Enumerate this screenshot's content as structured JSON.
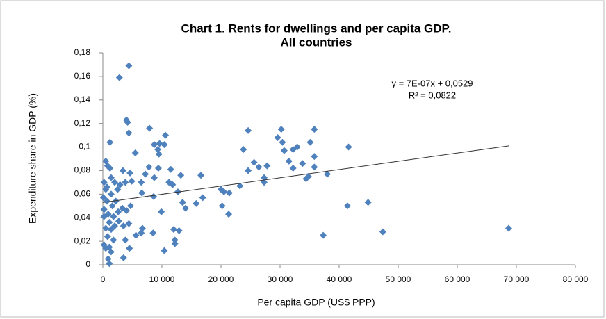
{
  "chart_data": {
    "type": "scatter",
    "title": [
      "Chart 1. Rents for dwellings and per capita GDP.",
      "All countries"
    ],
    "xlabel": "Per capita GDP (US$ PPP)",
    "ylabel": "Expenditure share in GDP (%)",
    "color": "#4f81bd",
    "trendline": {
      "equation": "y = 7E-07x + 0,0529",
      "r2": "R² = 0,0822",
      "slope": 7e-07,
      "intercept": 0.0529
    },
    "x": [
      4400,
      2800,
      4000,
      4200,
      4400,
      1200,
      7900,
      10600,
      8700,
      9600,
      10400,
      9300,
      9500,
      5500,
      24600,
      30200,
      35800,
      23800,
      29600,
      30400,
      30700,
      32200,
      32900,
      35100,
      35800,
      35800,
      41600,
      31500,
      32200,
      33800,
      24600,
      25600,
      26400,
      27800,
      27300,
      27300,
      34400,
      34800,
      38000,
      23200,
      20000,
      20500,
      21400,
      20200,
      21300,
      16600,
      16900,
      15800,
      14000,
      13500,
      13200,
      12700,
      11800,
      11200,
      11500,
      12900,
      12000,
      12200,
      12200,
      10400,
      9900,
      8600,
      8700,
      9400,
      7800,
      7200,
      6500,
      6600,
      8500,
      6700,
      6500,
      5600,
      4600,
      4900,
      3800,
      3400,
      2500,
      2900,
      4700,
      4000,
      3300,
      2700,
      3500,
      4400,
      3800,
      4500,
      3500,
      37300,
      41400,
      44900,
      47400,
      68700,
      800,
      1200,
      500,
      1400,
      200,
      500,
      1400,
      2000,
      700,
      1600,
      200,
      900,
      200,
      1800,
      1100,
      500,
      1400,
      800,
      200,
      1100,
      500,
      1400,
      900,
      1100,
      1800,
      2000,
      2600,
      2200,
      700,
      100
    ],
    "values": [
      0.169,
      0.159,
      0.123,
      0.121,
      0.112,
      0.104,
      0.116,
      0.11,
      0.102,
      0.103,
      0.102,
      0.098,
      0.094,
      0.095,
      0.114,
      0.115,
      0.115,
      0.098,
      0.108,
      0.104,
      0.097,
      0.098,
      0.1,
      0.104,
      0.092,
      0.083,
      0.1,
      0.088,
      0.082,
      0.086,
      0.08,
      0.087,
      0.083,
      0.084,
      0.074,
      0.07,
      0.073,
      0.075,
      0.077,
      0.067,
      0.064,
      0.062,
      0.061,
      0.05,
      0.043,
      0.076,
      0.057,
      0.052,
      0.048,
      0.053,
      0.076,
      0.062,
      0.068,
      0.07,
      0.081,
      0.029,
      0.03,
      0.021,
      0.018,
      0.012,
      0.045,
      0.058,
      0.074,
      0.082,
      0.083,
      0.077,
      0.07,
      0.061,
      0.027,
      0.031,
      0.027,
      0.025,
      0.078,
      0.071,
      0.07,
      0.08,
      0.064,
      0.068,
      0.05,
      0.046,
      0.048,
      0.037,
      0.033,
      0.035,
      0.021,
      0.014,
      0.006,
      0.025,
      0.05,
      0.053,
      0.028,
      0.031,
      0.084,
      0.082,
      0.088,
      0.074,
      0.07,
      0.064,
      0.06,
      0.07,
      0.054,
      0.05,
      0.047,
      0.043,
      0.041,
      0.041,
      0.036,
      0.031,
      0.03,
      0.024,
      0.017,
      0.015,
      0.014,
      0.011,
      0.005,
      0.001,
      0.021,
      0.033,
      0.045,
      0.054,
      0.066,
      0.057
    ],
    "xlim": [
      0,
      80000
    ],
    "xticks": [
      0,
      {
        "value": 10000,
        "label": "10 000"
      },
      {
        "value": 20000,
        "label": "20 000"
      },
      {
        "value": 30000,
        "label": "30 000"
      },
      {
        "value": 40000,
        "label": "40 000"
      },
      {
        "value": 50000,
        "label": "50 000"
      },
      {
        "value": 60000,
        "label": "60 000"
      },
      {
        "value": 70000,
        "label": "70 000"
      },
      {
        "value": 80000,
        "label": "80 000"
      }
    ],
    "ylim": [
      0,
      0.18
    ],
    "yticks": [
      0,
      {
        "value": 0.02,
        "label": "0,02"
      },
      {
        "value": 0.04,
        "label": "0,04"
      },
      {
        "value": 0.06,
        "label": "0,06"
      },
      {
        "value": 0.08,
        "label": "0,08"
      },
      {
        "value": 0.1,
        "label": "0,1"
      },
      {
        "value": 0.12,
        "label": "0,12"
      },
      {
        "value": 0.14,
        "label": "0,14"
      },
      {
        "value": 0.16,
        "label": "0,16"
      },
      {
        "value": 0.18,
        "label": "0,18"
      }
    ]
  }
}
